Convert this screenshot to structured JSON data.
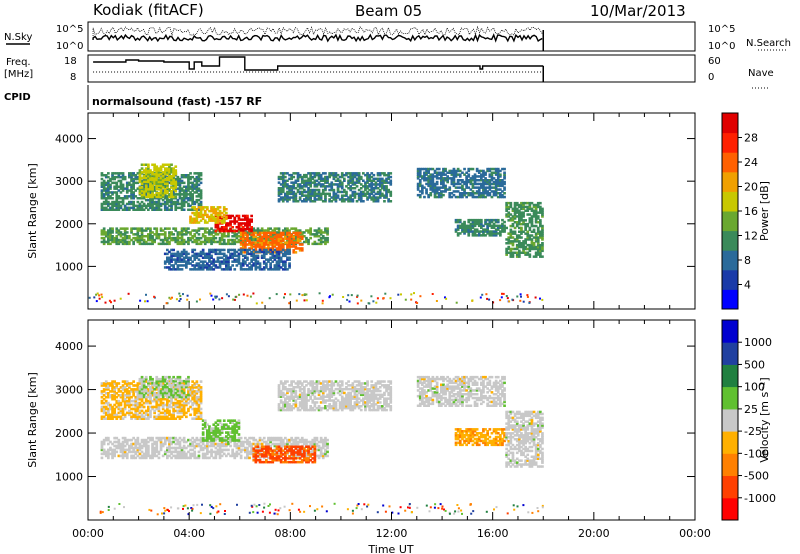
{
  "header": {
    "station": "Kodiak (fitACF)",
    "beam": "Beam 05",
    "date": "10/Mar/2013"
  },
  "colors": {
    "power": [
      "#0000ff",
      "#1a3aa8",
      "#2a6a9a",
      "#3a8a5a",
      "#6aa830",
      "#c8c800",
      "#f0a000",
      "#ff6000",
      "#ff2000",
      "#e00000"
    ],
    "velocity": [
      "#ff0000",
      "#ff4000",
      "#ff8000",
      "#ffb000",
      "#c8c8c8",
      "#60c030",
      "#208040",
      "#2040a0",
      "#0000d0"
    ]
  },
  "top_panels": {
    "nsky": {
      "label": "N.Sky",
      "ticks_left": [
        "10^5",
        "10^0"
      ],
      "ticks_right": [
        "10^5",
        "10^0"
      ],
      "legend_right": "N.Search"
    },
    "freq": {
      "label_lines": [
        "Freq.",
        "[MHz]"
      ],
      "ticks_left": [
        "18",
        "8"
      ],
      "ticks_right": [
        "60",
        "0"
      ],
      "legend_right": "Nave"
    },
    "cpid": {
      "label": "CPID",
      "text": "normalsound (fast) -157 RF"
    }
  },
  "chart_data": [
    {
      "type": "heatmap",
      "name": "power",
      "ylabel": "Slant Range [km]",
      "xlabel": "",
      "xlim": [
        "00:00",
        "24:00"
      ],
      "ylim": [
        0,
        4600
      ],
      "yticks": [
        "1000",
        "2000",
        "3000",
        "4000"
      ],
      "xticks": [
        "00:00",
        "04:00",
        "08:00",
        "12:00",
        "16:00",
        "20:00",
        "00:00"
      ],
      "colorbar": {
        "label": "Power [dB]",
        "ticks": [
          "28",
          "24",
          "20",
          "16",
          "12",
          "8",
          "4"
        ],
        "range": [
          0,
          30
        ]
      },
      "blobs": [
        {
          "t0": 0.5,
          "t1": 9.5,
          "r0": 1500,
          "r1": 1900,
          "v": 12
        },
        {
          "t0": 0.5,
          "t1": 4.5,
          "r0": 2300,
          "r1": 3200,
          "v": 10
        },
        {
          "t0": 2.0,
          "t1": 3.5,
          "r0": 2600,
          "r1": 3400,
          "v": 16
        },
        {
          "t0": 5.0,
          "t1": 6.5,
          "r0": 1800,
          "r1": 2200,
          "v": 28
        },
        {
          "t0": 6.0,
          "t1": 8.5,
          "r0": 1300,
          "r1": 1800,
          "v": 22
        },
        {
          "t0": 4.0,
          "t1": 5.5,
          "r0": 2000,
          "r1": 2400,
          "v": 18
        },
        {
          "t0": 7.5,
          "t1": 12.0,
          "r0": 2500,
          "r1": 3200,
          "v": 9
        },
        {
          "t0": 13.0,
          "t1": 16.5,
          "r0": 2600,
          "r1": 3300,
          "v": 8
        },
        {
          "t0": 14.5,
          "t1": 16.5,
          "r0": 1700,
          "r1": 2100,
          "v": 10
        },
        {
          "t0": 16.5,
          "t1": 18.0,
          "r0": 1200,
          "r1": 2500,
          "v": 11
        },
        {
          "t0": 3.0,
          "t1": 8.0,
          "r0": 900,
          "r1": 1400,
          "v": 7
        }
      ]
    },
    {
      "type": "heatmap",
      "name": "velocity",
      "ylabel": "Slant Range [km]",
      "xlabel": "Time UT",
      "xlim": [
        "00:00",
        "24:00"
      ],
      "ylim": [
        0,
        4600
      ],
      "yticks": [
        "1000",
        "2000",
        "3000",
        "4000"
      ],
      "xticks": [
        "00:00",
        "04:00",
        "08:00",
        "12:00",
        "16:00",
        "20:00",
        "00:00"
      ],
      "colorbar": {
        "label": "Velocity [m s⁻¹]",
        "ticks": [
          "1000",
          "500",
          "100",
          "25",
          "-25",
          "-100",
          "-500",
          "-1000"
        ],
        "range": [
          -1000,
          1000
        ]
      },
      "blobs": [
        {
          "t0": 0.5,
          "t1": 9.5,
          "r0": 1400,
          "r1": 1900,
          "v": 0
        },
        {
          "t0": 0.5,
          "t1": 4.5,
          "r0": 2300,
          "r1": 3200,
          "v": -150
        },
        {
          "t0": 4.5,
          "t1": 6.0,
          "r0": 1800,
          "r1": 2300,
          "v": 200
        },
        {
          "t0": 6.5,
          "t1": 9.0,
          "r0": 1300,
          "r1": 1700,
          "v": -600
        },
        {
          "t0": 7.5,
          "t1": 12.0,
          "r0": 2500,
          "r1": 3200,
          "v": 0
        },
        {
          "t0": 13.0,
          "t1": 16.5,
          "r0": 2600,
          "r1": 3300,
          "v": 0
        },
        {
          "t0": 14.5,
          "t1": 16.5,
          "r0": 1700,
          "r1": 2100,
          "v": -300
        },
        {
          "t0": 16.5,
          "t1": 18.0,
          "r0": 1200,
          "r1": 2500,
          "v": 0
        },
        {
          "t0": 2.0,
          "t1": 4.0,
          "r0": 2800,
          "r1": 3300,
          "v": 100
        }
      ]
    }
  ]
}
